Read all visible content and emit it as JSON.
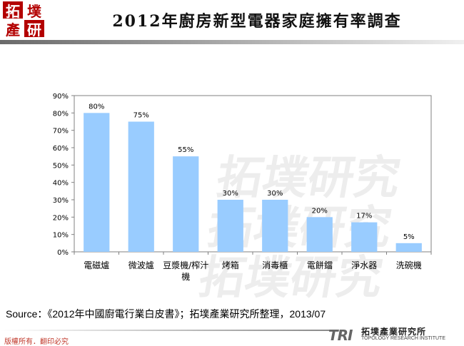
{
  "logo": {
    "chars": [
      "拓",
      "墣",
      "產",
      "研"
    ]
  },
  "title": "2012年廚房新型電器家庭擁有率調查",
  "chart_data": {
    "type": "bar",
    "categories": [
      "電磁爐",
      "微波爐",
      "豆漿機/榨汁機",
      "烤箱",
      "消毒櫃",
      "電餅鐺",
      "淨水器",
      "洗碗機"
    ],
    "category_lines": [
      [
        "電磁爐"
      ],
      [
        "微波爐"
      ],
      [
        "豆漿機/榨汁",
        "機"
      ],
      [
        "烤箱"
      ],
      [
        "消毒櫃"
      ],
      [
        "電餅鐺"
      ],
      [
        "淨水器"
      ],
      [
        "洗碗機"
      ]
    ],
    "values": [
      80,
      75,
      55,
      30,
      30,
      20,
      17,
      5
    ],
    "data_labels": [
      "80%",
      "75%",
      "55%",
      "30%",
      "30%",
      "20%",
      "17%",
      "5%"
    ],
    "ylim": [
      0,
      90
    ],
    "yticks": [
      0,
      10,
      20,
      30,
      40,
      50,
      60,
      70,
      80,
      90
    ],
    "ytick_labels": [
      "0%",
      "10%",
      "20%",
      "30%",
      "40%",
      "50%",
      "60%",
      "70%",
      "80%",
      "90%"
    ],
    "bar_color": "#99ccff",
    "grid": false
  },
  "source": "Source：《2012年中國廚電行業白皮書》；拓墣產業研究所整理，2013/07",
  "copyright": "版權所有．翻印必究",
  "brand": {
    "mark": "TRI",
    "name": "拓墣產業研究所",
    "sub": "TOPOLOGY RESEARCH INSTITUTE"
  },
  "watermark": "拓墣研究"
}
